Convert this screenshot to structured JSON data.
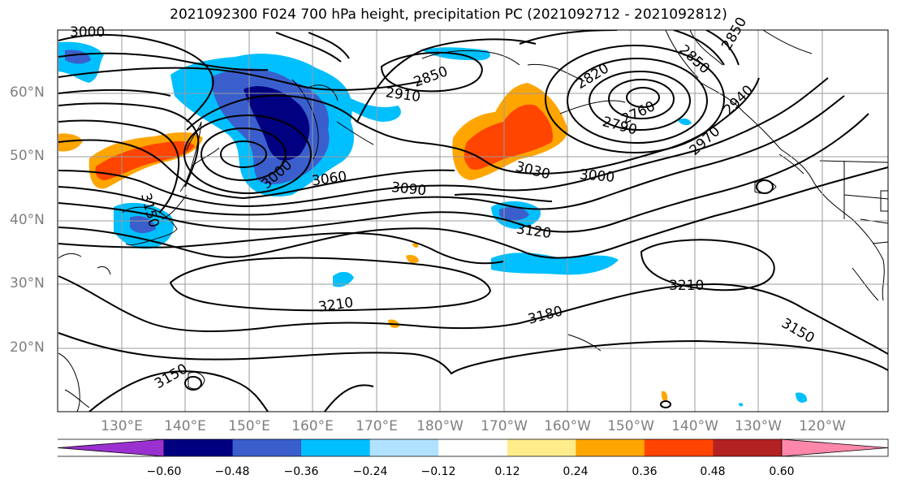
{
  "title": "2021092300 F024 700 hPa height, precipitation PC (2021092712 - 2021092812)",
  "lat_labels": [
    "60°N",
    "50°N",
    "40°N",
    "30°N",
    "20°N"
  ],
  "lon_labels": [
    "130°E",
    "140°E",
    "150°E",
    "160°E",
    "170°E",
    "180°W",
    "170°W",
    "160°W",
    "150°W",
    "140°W",
    "130°W",
    "120°W"
  ],
  "contour_labels": [
    "3000",
    "2850",
    "2910",
    "2820",
    "2850",
    "2850",
    "2760",
    "2790",
    "2940",
    "2970",
    "3000",
    "3060",
    "3090",
    "3030",
    "3000",
    "3150",
    "3120",
    "3210",
    "3210",
    "3180",
    "3150",
    "3150"
  ],
  "colorbar": {
    "colors": [
      "#9b30d0",
      "#000080",
      "#3a5fcd",
      "#00bfff",
      "#b0e2ff",
      "#ffffff",
      "#ffec8b",
      "#ffa500",
      "#ff4500",
      "#b22222",
      "#ff88aa"
    ],
    "tick_labels": [
      "−0.60",
      "−0.48",
      "−0.36",
      "−0.24",
      "−0.12",
      "0.12",
      "0.24",
      "0.36",
      "0.48",
      "0.60"
    ]
  }
}
